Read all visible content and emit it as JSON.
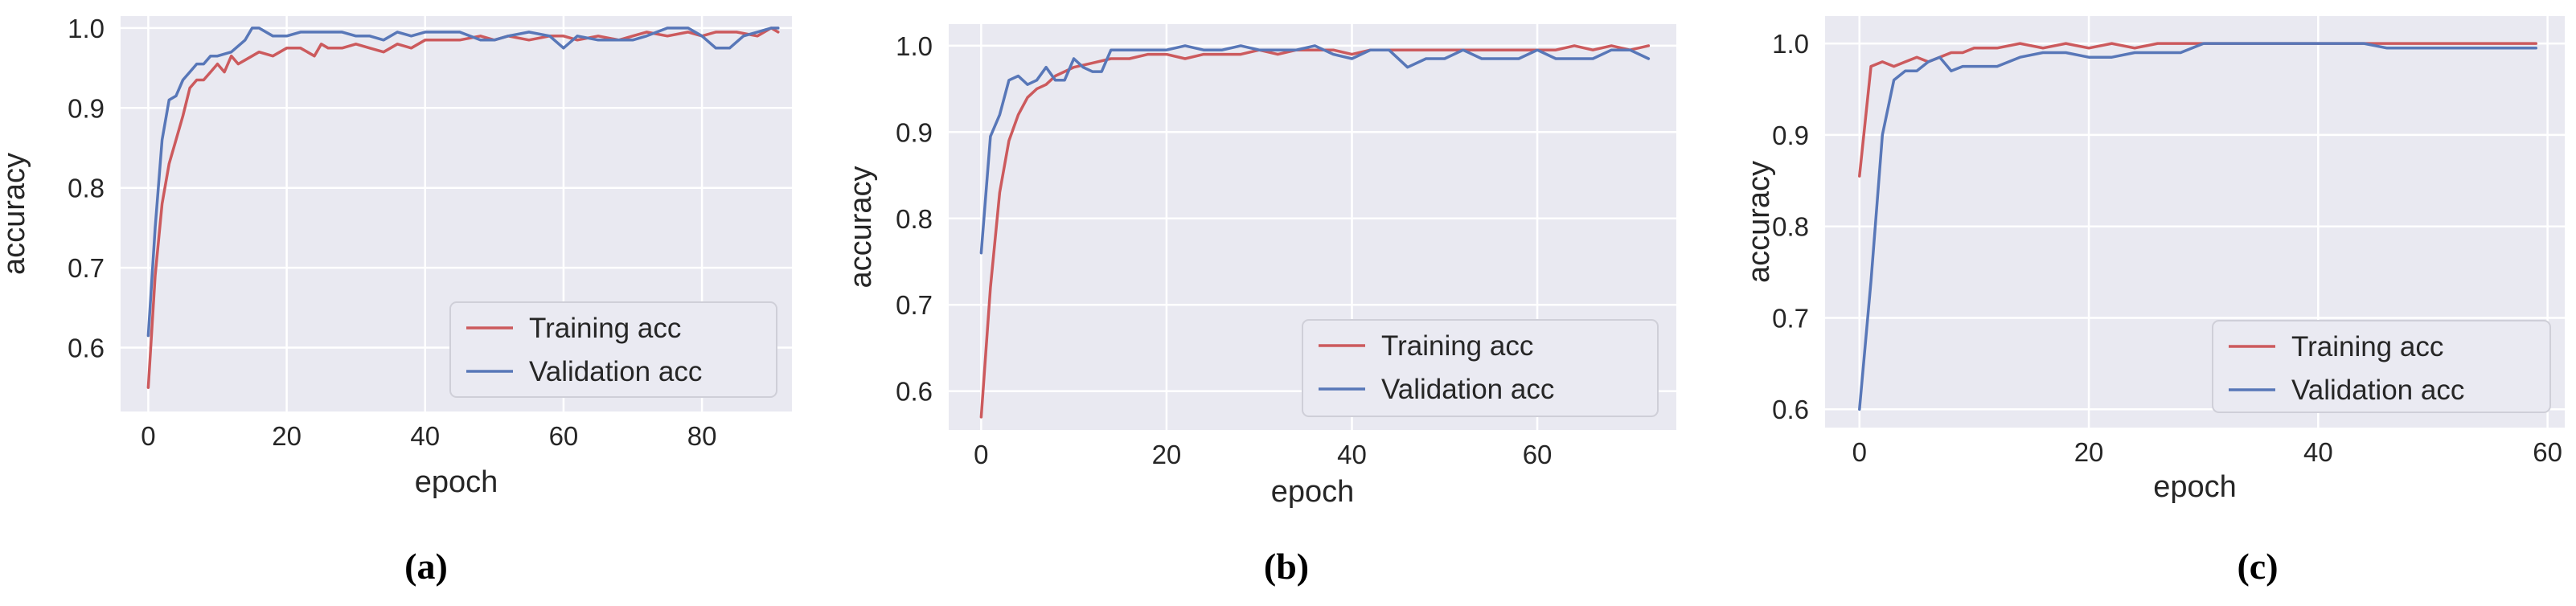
{
  "colors": {
    "plot_bg": "#e9e9f1",
    "grid": "#ffffff",
    "axis_text": "#262626",
    "training": "#cc5a5d",
    "validation": "#5877b8",
    "legend_bg": "#eaeaf2",
    "legend_border": "#cfcfd8"
  },
  "chart_data": [
    {
      "type": "line",
      "caption": "(a)",
      "xlabel": "epoch",
      "ylabel": "accuracy",
      "xlim": [
        -4,
        93
      ],
      "ylim": [
        0.52,
        1.015
      ],
      "xticks": [
        0,
        20,
        40,
        60,
        80
      ],
      "yticks": [
        0.6,
        0.7,
        0.8,
        0.9,
        1.0
      ],
      "ytick_labels": [
        "0.6",
        "0.7",
        "0.8",
        "0.9",
        "1.0"
      ],
      "legend_position": "lower-right",
      "series": [
        {
          "name": "Training acc",
          "key": "training",
          "x": [
            0,
            1,
            2,
            3,
            4,
            5,
            6,
            7,
            8,
            9,
            10,
            11,
            12,
            13,
            14,
            15,
            16,
            18,
            20,
            22,
            24,
            25,
            26,
            28,
            30,
            32,
            34,
            36,
            38,
            40,
            42,
            45,
            48,
            50,
            52,
            55,
            58,
            60,
            62,
            65,
            68,
            70,
            72,
            75,
            78,
            80,
            82,
            85,
            88,
            90,
            91
          ],
          "y": [
            0.55,
            0.69,
            0.78,
            0.83,
            0.86,
            0.89,
            0.925,
            0.935,
            0.935,
            0.945,
            0.955,
            0.945,
            0.965,
            0.955,
            0.96,
            0.965,
            0.97,
            0.965,
            0.975,
            0.975,
            0.965,
            0.98,
            0.975,
            0.975,
            0.98,
            0.975,
            0.97,
            0.98,
            0.975,
            0.985,
            0.985,
            0.985,
            0.99,
            0.985,
            0.99,
            0.985,
            0.99,
            0.99,
            0.985,
            0.99,
            0.985,
            0.99,
            0.995,
            0.99,
            0.995,
            0.99,
            0.995,
            0.995,
            0.99,
            1.0,
            0.995
          ]
        },
        {
          "name": "Validation acc",
          "key": "validation",
          "x": [
            0,
            1,
            2,
            3,
            4,
            5,
            6,
            7,
            8,
            9,
            10,
            12,
            14,
            15,
            16,
            18,
            20,
            22,
            24,
            26,
            28,
            30,
            32,
            34,
            36,
            38,
            40,
            42,
            45,
            48,
            50,
            52,
            55,
            58,
            60,
            62,
            65,
            68,
            70,
            72,
            75,
            78,
            80,
            82,
            84,
            86,
            88,
            90,
            91
          ],
          "y": [
            0.615,
            0.75,
            0.86,
            0.91,
            0.915,
            0.935,
            0.945,
            0.955,
            0.955,
            0.965,
            0.965,
            0.97,
            0.985,
            1.0,
            1.0,
            0.99,
            0.99,
            0.995,
            0.995,
            0.995,
            0.995,
            0.99,
            0.99,
            0.985,
            0.995,
            0.99,
            0.995,
            0.995,
            0.995,
            0.985,
            0.985,
            0.99,
            0.995,
            0.99,
            0.975,
            0.99,
            0.985,
            0.985,
            0.985,
            0.99,
            1.0,
            1.0,
            0.99,
            0.975,
            0.975,
            0.99,
            0.995,
            1.0,
            1.0
          ]
        }
      ]
    },
    {
      "type": "line",
      "caption": "(b)",
      "xlabel": "epoch",
      "ylabel": "accuracy",
      "xlim": [
        -3.5,
        75
      ],
      "ylim": [
        0.555,
        1.025
      ],
      "xticks": [
        0,
        20,
        40,
        60
      ],
      "yticks": [
        0.6,
        0.7,
        0.8,
        0.9,
        1.0
      ],
      "ytick_labels": [
        "0.6",
        "0.7",
        "0.8",
        "0.9",
        "1.0"
      ],
      "legend_position": "lower-right",
      "series": [
        {
          "name": "Training acc",
          "key": "training",
          "x": [
            0,
            1,
            2,
            3,
            4,
            5,
            6,
            7,
            8,
            10,
            12,
            14,
            16,
            18,
            20,
            22,
            24,
            26,
            28,
            30,
            32,
            34,
            36,
            38,
            40,
            42,
            44,
            46,
            48,
            50,
            52,
            54,
            56,
            58,
            60,
            62,
            64,
            66,
            68,
            70,
            72
          ],
          "y": [
            0.57,
            0.72,
            0.83,
            0.89,
            0.92,
            0.94,
            0.95,
            0.955,
            0.965,
            0.975,
            0.98,
            0.985,
            0.985,
            0.99,
            0.99,
            0.985,
            0.99,
            0.99,
            0.99,
            0.995,
            0.99,
            0.995,
            0.995,
            0.995,
            0.99,
            0.995,
            0.995,
            0.995,
            0.995,
            0.995,
            0.995,
            0.995,
            0.995,
            0.995,
            0.995,
            0.995,
            1.0,
            0.995,
            1.0,
            0.995,
            1.0
          ]
        },
        {
          "name": "Validation acc",
          "key": "validation",
          "x": [
            0,
            1,
            2,
            3,
            4,
            5,
            6,
            7,
            8,
            9,
            10,
            11,
            12,
            13,
            14,
            16,
            18,
            20,
            22,
            24,
            26,
            28,
            30,
            32,
            34,
            36,
            38,
            40,
            42,
            44,
            46,
            48,
            50,
            52,
            54,
            56,
            58,
            60,
            62,
            64,
            66,
            68,
            70,
            72
          ],
          "y": [
            0.76,
            0.895,
            0.92,
            0.96,
            0.965,
            0.955,
            0.96,
            0.975,
            0.96,
            0.96,
            0.985,
            0.975,
            0.97,
            0.97,
            0.995,
            0.995,
            0.995,
            0.995,
            1.0,
            0.995,
            0.995,
            1.0,
            0.995,
            0.995,
            0.995,
            1.0,
            0.99,
            0.985,
            0.995,
            0.995,
            0.975,
            0.985,
            0.985,
            0.995,
            0.985,
            0.985,
            0.985,
            0.995,
            0.985,
            0.985,
            0.985,
            0.995,
            0.995,
            0.985
          ]
        }
      ]
    },
    {
      "type": "line",
      "caption": "(c)",
      "xlabel": "epoch",
      "ylabel": "accuracy",
      "xlim": [
        -3,
        61.5
      ],
      "ylim": [
        0.58,
        1.03
      ],
      "xticks": [
        0,
        20,
        40,
        60
      ],
      "yticks": [
        0.6,
        0.7,
        0.8,
        0.9,
        1.0
      ],
      "ytick_labels": [
        "0.6",
        "0.7",
        "0.8",
        "0.9",
        "1.0"
      ],
      "legend_position": "lower-right",
      "series": [
        {
          "name": "Training acc",
          "key": "training",
          "x": [
            0,
            1,
            2,
            3,
            4,
            5,
            6,
            7,
            8,
            9,
            10,
            12,
            14,
            16,
            18,
            20,
            22,
            24,
            26,
            28,
            30,
            32,
            34,
            36,
            38,
            40,
            42,
            44,
            46,
            48,
            50,
            52,
            54,
            56,
            58,
            59
          ],
          "y": [
            0.855,
            0.975,
            0.98,
            0.975,
            0.98,
            0.985,
            0.98,
            0.985,
            0.99,
            0.99,
            0.995,
            0.995,
            1.0,
            0.995,
            1.0,
            0.995,
            1.0,
            0.995,
            1.0,
            1.0,
            1.0,
            1.0,
            1.0,
            1.0,
            1.0,
            1.0,
            1.0,
            1.0,
            1.0,
            1.0,
            1.0,
            1.0,
            1.0,
            1.0,
            1.0,
            1.0
          ]
        },
        {
          "name": "Validation acc",
          "key": "validation",
          "x": [
            0,
            1,
            2,
            3,
            4,
            5,
            6,
            7,
            8,
            9,
            10,
            12,
            14,
            16,
            18,
            20,
            22,
            24,
            26,
            28,
            30,
            32,
            34,
            36,
            38,
            40,
            42,
            44,
            46,
            48,
            50,
            52,
            54,
            56,
            58,
            59
          ],
          "y": [
            0.6,
            0.74,
            0.9,
            0.96,
            0.97,
            0.97,
            0.98,
            0.985,
            0.97,
            0.975,
            0.975,
            0.975,
            0.985,
            0.99,
            0.99,
            0.985,
            0.985,
            0.99,
            0.99,
            0.99,
            1.0,
            1.0,
            1.0,
            1.0,
            1.0,
            1.0,
            1.0,
            1.0,
            0.995,
            0.995,
            0.995,
            0.995,
            0.995,
            0.995,
            0.995,
            0.995
          ]
        }
      ]
    }
  ]
}
